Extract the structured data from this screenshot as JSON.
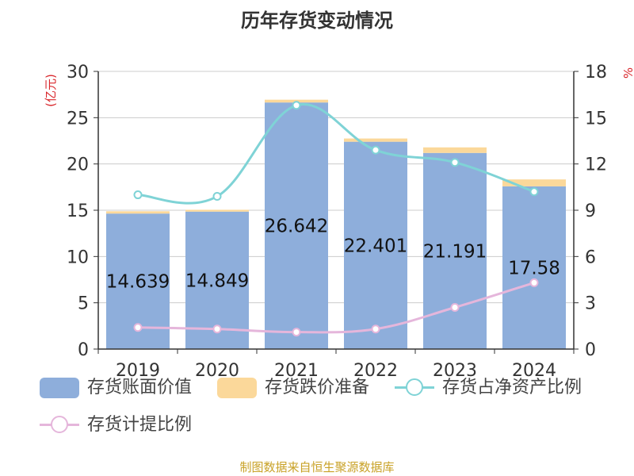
{
  "title": "历年存货变动情况",
  "source": "制图数据来自恒生聚源数据库",
  "colors": {
    "book_value": "#8eaedb",
    "provision": "#fbd89a",
    "ratio_net_assets": "#7fd3d6",
    "provision_ratio": "#e5b6db",
    "axis_unit": "#d9262b"
  },
  "chart_data": {
    "type": "bar",
    "categories": [
      "2019",
      "2020",
      "2021",
      "2022",
      "2023",
      "2024"
    ],
    "y_left": {
      "label": "(亿元)",
      "range": [
        0,
        30
      ],
      "ticks": [
        "0",
        "5",
        "10",
        "15",
        "20",
        "25",
        "30"
      ]
    },
    "y_right": {
      "label": "%",
      "range": [
        0,
        18
      ],
      "ticks": [
        "0",
        "3",
        "6",
        "9",
        "12",
        "15",
        "18"
      ]
    },
    "grid": true,
    "legend_position": "bottom",
    "series": [
      {
        "name": "存货账面价值",
        "kind": "bar-stack-base",
        "axis": "left",
        "values": [
          14.639,
          14.849,
          26.642,
          22.401,
          21.191,
          17.58
        ],
        "labels": [
          "14.639",
          "14.849",
          "26.642",
          "22.401",
          "21.191",
          "17.58"
        ]
      },
      {
        "name": "存货跌价准备",
        "kind": "bar-stack-top",
        "axis": "left",
        "values": [
          0.25,
          0.2,
          0.3,
          0.35,
          0.6,
          0.75
        ]
      },
      {
        "name": "存货占净资产比例",
        "kind": "line",
        "axis": "right",
        "values": [
          10.0,
          9.9,
          15.8,
          12.9,
          12.1,
          10.2
        ]
      },
      {
        "name": "存货计提比例",
        "kind": "line",
        "axis": "right",
        "values": [
          1.4,
          1.3,
          1.1,
          1.3,
          2.7,
          4.3
        ]
      }
    ]
  }
}
